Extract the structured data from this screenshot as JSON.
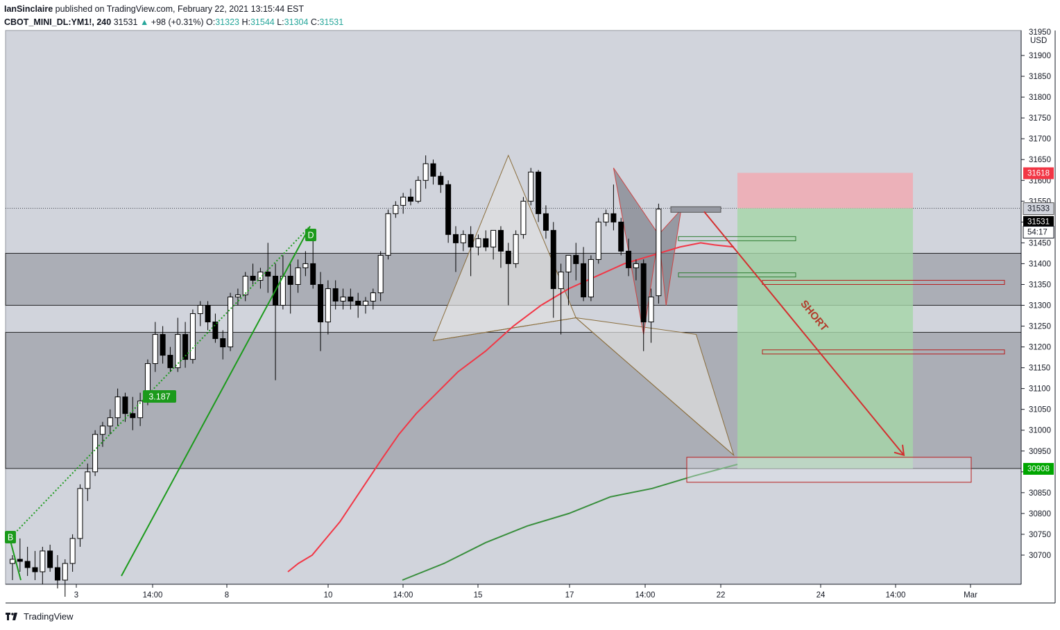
{
  "header": {
    "user": "IanSinclaire",
    "published": "published on TradingView.com, February 22, 2021 13:15:44 EST",
    "symbol": "CBOT_MINI_DL:YM1!, 240",
    "last": "31531",
    "change_arrow": "▲",
    "change": "+98 (+0.31%)",
    "o_label": "O:",
    "o_value": "31323",
    "h_label": "H:",
    "h_value": "31544",
    "l_label": "L:",
    "l_value": "31304",
    "c_label": "C:",
    "c_value": "31531"
  },
  "footer": {
    "brand": "TradingView"
  },
  "colors": {
    "up_candle": "#ffffff",
    "down_candle": "#000000",
    "red_ma": "#f23645",
    "green_ma": "#388e3c",
    "pattern_line": "#8a6d3b",
    "stop_zone": "#f4a6ad",
    "target_zone": "#a5d6a7",
    "price_tag_red": "#f23645",
    "price_tag_black": "#000000",
    "price_tag_green": "#00a600",
    "short_label": "#b23a2a"
  },
  "chart_data": {
    "type": "candlestick",
    "price_axis": {
      "unit": "USD",
      "range": [
        30630,
        31960
      ],
      "ticks": [
        30700,
        30750,
        30800,
        30850,
        30900,
        30950,
        31000,
        31050,
        31100,
        31150,
        31200,
        31250,
        31300,
        31350,
        31400,
        31450,
        31500,
        31550,
        31600,
        31650,
        31700,
        31750,
        31800,
        31850,
        31900
      ],
      "top_partial_label": "31950"
    },
    "time_axis": {
      "labels": [
        "3",
        "14:00",
        "8",
        "10",
        "14:00",
        "15",
        "17",
        "14:00",
        "22",
        "24",
        "14:00",
        "Mar"
      ]
    },
    "price_tags": [
      {
        "label": "31618",
        "value": 31618,
        "style": "red"
      },
      {
        "label": "31533",
        "value": 31533,
        "style": "grey"
      },
      {
        "label": "31531",
        "value": 31531,
        "style": "black"
      },
      {
        "label": "54:17",
        "value": 31503,
        "style": "black-outline"
      },
      {
        "label": "30908",
        "value": 30908,
        "style": "green"
      }
    ],
    "zones": [
      {
        "from": 31300,
        "to": 31425,
        "kind": "resistance"
      },
      {
        "from": 30908,
        "to": 31235,
        "kind": "support"
      }
    ],
    "trade": {
      "entry": 31533,
      "stop": 31618,
      "target": 30908,
      "label": "SHORT"
    },
    "pattern_points": [
      {
        "label": "B",
        "value": 30740
      },
      {
        "label": "D",
        "value": 31490
      }
    ],
    "ratio_label": "3.187",
    "candles": [
      {
        "o": 30680,
        "h": 30700,
        "l": 30640,
        "c": 30690
      },
      {
        "o": 30690,
        "h": 30740,
        "l": 30660,
        "c": 30685
      },
      {
        "o": 30685,
        "h": 30720,
        "l": 30650,
        "c": 30670
      },
      {
        "o": 30670,
        "h": 30710,
        "l": 30640,
        "c": 30660
      },
      {
        "o": 30660,
        "h": 30720,
        "l": 30630,
        "c": 30710
      },
      {
        "o": 30710,
        "h": 30725,
        "l": 30660,
        "c": 30670
      },
      {
        "o": 30670,
        "h": 30700,
        "l": 30620,
        "c": 30640
      },
      {
        "o": 30640,
        "h": 30690,
        "l": 30600,
        "c": 30680
      },
      {
        "o": 30680,
        "h": 30750,
        "l": 30660,
        "c": 30740
      },
      {
        "o": 30740,
        "h": 30870,
        "l": 30720,
        "c": 30860
      },
      {
        "o": 30860,
        "h": 30920,
        "l": 30830,
        "c": 30900
      },
      {
        "o": 30900,
        "h": 31000,
        "l": 30890,
        "c": 30990
      },
      {
        "o": 30990,
        "h": 31020,
        "l": 30960,
        "c": 31010
      },
      {
        "o": 31010,
        "h": 31050,
        "l": 30990,
        "c": 31030
      },
      {
        "o": 31030,
        "h": 31100,
        "l": 31010,
        "c": 31080
      },
      {
        "o": 31080,
        "h": 31090,
        "l": 31020,
        "c": 31040
      },
      {
        "o": 31040,
        "h": 31080,
        "l": 31000,
        "c": 31030
      },
      {
        "o": 31030,
        "h": 31090,
        "l": 31010,
        "c": 31070
      },
      {
        "o": 31070,
        "h": 31170,
        "l": 31060,
        "c": 31160
      },
      {
        "o": 31160,
        "h": 31260,
        "l": 31140,
        "c": 31230
      },
      {
        "o": 31230,
        "h": 31250,
        "l": 31160,
        "c": 31180
      },
      {
        "o": 31180,
        "h": 31200,
        "l": 31140,
        "c": 31150
      },
      {
        "o": 31150,
        "h": 31270,
        "l": 31140,
        "c": 31230
      },
      {
        "o": 31230,
        "h": 31260,
        "l": 31150,
        "c": 31170
      },
      {
        "o": 31170,
        "h": 31290,
        "l": 31160,
        "c": 31280
      },
      {
        "o": 31280,
        "h": 31310,
        "l": 31250,
        "c": 31300
      },
      {
        "o": 31300,
        "h": 31310,
        "l": 31240,
        "c": 31260
      },
      {
        "o": 31260,
        "h": 31280,
        "l": 31210,
        "c": 31220
      },
      {
        "o": 31220,
        "h": 31240,
        "l": 31170,
        "c": 31200
      },
      {
        "o": 31200,
        "h": 31330,
        "l": 31190,
        "c": 31320
      },
      {
        "o": 31320,
        "h": 31340,
        "l": 31300,
        "c": 31325
      },
      {
        "o": 31325,
        "h": 31380,
        "l": 31310,
        "c": 31370
      },
      {
        "o": 31370,
        "h": 31400,
        "l": 31350,
        "c": 31360
      },
      {
        "o": 31360,
        "h": 31390,
        "l": 31340,
        "c": 31380
      },
      {
        "o": 31380,
        "h": 31450,
        "l": 31330,
        "c": 31370
      },
      {
        "o": 31370,
        "h": 31400,
        "l": 31120,
        "c": 31300
      },
      {
        "o": 31300,
        "h": 31420,
        "l": 31290,
        "c": 31370
      },
      {
        "o": 31370,
        "h": 31400,
        "l": 31280,
        "c": 31350
      },
      {
        "o": 31350,
        "h": 31410,
        "l": 31330,
        "c": 31390
      },
      {
        "o": 31390,
        "h": 31430,
        "l": 31370,
        "c": 31400
      },
      {
        "o": 31400,
        "h": 31470,
        "l": 31340,
        "c": 31350
      },
      {
        "o": 31350,
        "h": 31380,
        "l": 31190,
        "c": 31260
      },
      {
        "o": 31260,
        "h": 31360,
        "l": 31230,
        "c": 31340
      },
      {
        "o": 31340,
        "h": 31360,
        "l": 31290,
        "c": 31310
      },
      {
        "o": 31310,
        "h": 31340,
        "l": 31290,
        "c": 31320
      },
      {
        "o": 31320,
        "h": 31340,
        "l": 31290,
        "c": 31310
      },
      {
        "o": 31310,
        "h": 31330,
        "l": 31270,
        "c": 31300
      },
      {
        "o": 31300,
        "h": 31320,
        "l": 31280,
        "c": 31310
      },
      {
        "o": 31310,
        "h": 31340,
        "l": 31290,
        "c": 31330
      },
      {
        "o": 31330,
        "h": 31430,
        "l": 31310,
        "c": 31420
      },
      {
        "o": 31420,
        "h": 31530,
        "l": 31410,
        "c": 31520
      },
      {
        "o": 31520,
        "h": 31550,
        "l": 31510,
        "c": 31540
      },
      {
        "o": 31540,
        "h": 31570,
        "l": 31520,
        "c": 31560
      },
      {
        "o": 31560,
        "h": 31580,
        "l": 31540,
        "c": 31550
      },
      {
        "o": 31550,
        "h": 31610,
        "l": 31545,
        "c": 31600
      },
      {
        "o": 31600,
        "h": 31660,
        "l": 31580,
        "c": 31640
      },
      {
        "o": 31640,
        "h": 31650,
        "l": 31590,
        "c": 31610
      },
      {
        "o": 31610,
        "h": 31620,
        "l": 31570,
        "c": 31590
      },
      {
        "o": 31590,
        "h": 31600,
        "l": 31450,
        "c": 31470
      },
      {
        "o": 31470,
        "h": 31490,
        "l": 31380,
        "c": 31450
      },
      {
        "o": 31450,
        "h": 31480,
        "l": 31430,
        "c": 31470
      },
      {
        "o": 31470,
        "h": 31490,
        "l": 31370,
        "c": 31440
      },
      {
        "o": 31440,
        "h": 31470,
        "l": 31420,
        "c": 31460
      },
      {
        "o": 31460,
        "h": 31480,
        "l": 31430,
        "c": 31440
      },
      {
        "o": 31440,
        "h": 31480,
        "l": 31410,
        "c": 31480
      },
      {
        "o": 31480,
        "h": 31490,
        "l": 31390,
        "c": 31430
      },
      {
        "o": 31430,
        "h": 31450,
        "l": 31300,
        "c": 31400
      },
      {
        "o": 31400,
        "h": 31480,
        "l": 31390,
        "c": 31470
      },
      {
        "o": 31470,
        "h": 31560,
        "l": 31460,
        "c": 31550
      },
      {
        "o": 31550,
        "h": 31630,
        "l": 31540,
        "c": 31620
      },
      {
        "o": 31620,
        "h": 31625,
        "l": 31500,
        "c": 31520
      },
      {
        "o": 31520,
        "h": 31540,
        "l": 31460,
        "c": 31480
      },
      {
        "o": 31480,
        "h": 31500,
        "l": 31270,
        "c": 31340
      },
      {
        "o": 31340,
        "h": 31400,
        "l": 31230,
        "c": 31380
      },
      {
        "o": 31380,
        "h": 31420,
        "l": 31300,
        "c": 31420
      },
      {
        "o": 31420,
        "h": 31450,
        "l": 31360,
        "c": 31400
      },
      {
        "o": 31400,
        "h": 31440,
        "l": 31310,
        "c": 31320
      },
      {
        "o": 31320,
        "h": 31420,
        "l": 31310,
        "c": 31410
      },
      {
        "o": 31410,
        "h": 31510,
        "l": 31400,
        "c": 31500
      },
      {
        "o": 31500,
        "h": 31530,
        "l": 31490,
        "c": 31520
      },
      {
        "o": 31520,
        "h": 31590,
        "l": 31480,
        "c": 31500
      },
      {
        "o": 31500,
        "h": 31510,
        "l": 31420,
        "c": 31430
      },
      {
        "o": 31430,
        "h": 31460,
        "l": 31370,
        "c": 31390
      },
      {
        "o": 31390,
        "h": 31410,
        "l": 31360,
        "c": 31400
      },
      {
        "o": 31400,
        "h": 31410,
        "l": 31190,
        "c": 31260
      },
      {
        "o": 31260,
        "h": 31340,
        "l": 31210,
        "c": 31320
      },
      {
        "o": 31323,
        "h": 31544,
        "l": 31304,
        "c": 31531
      }
    ]
  }
}
